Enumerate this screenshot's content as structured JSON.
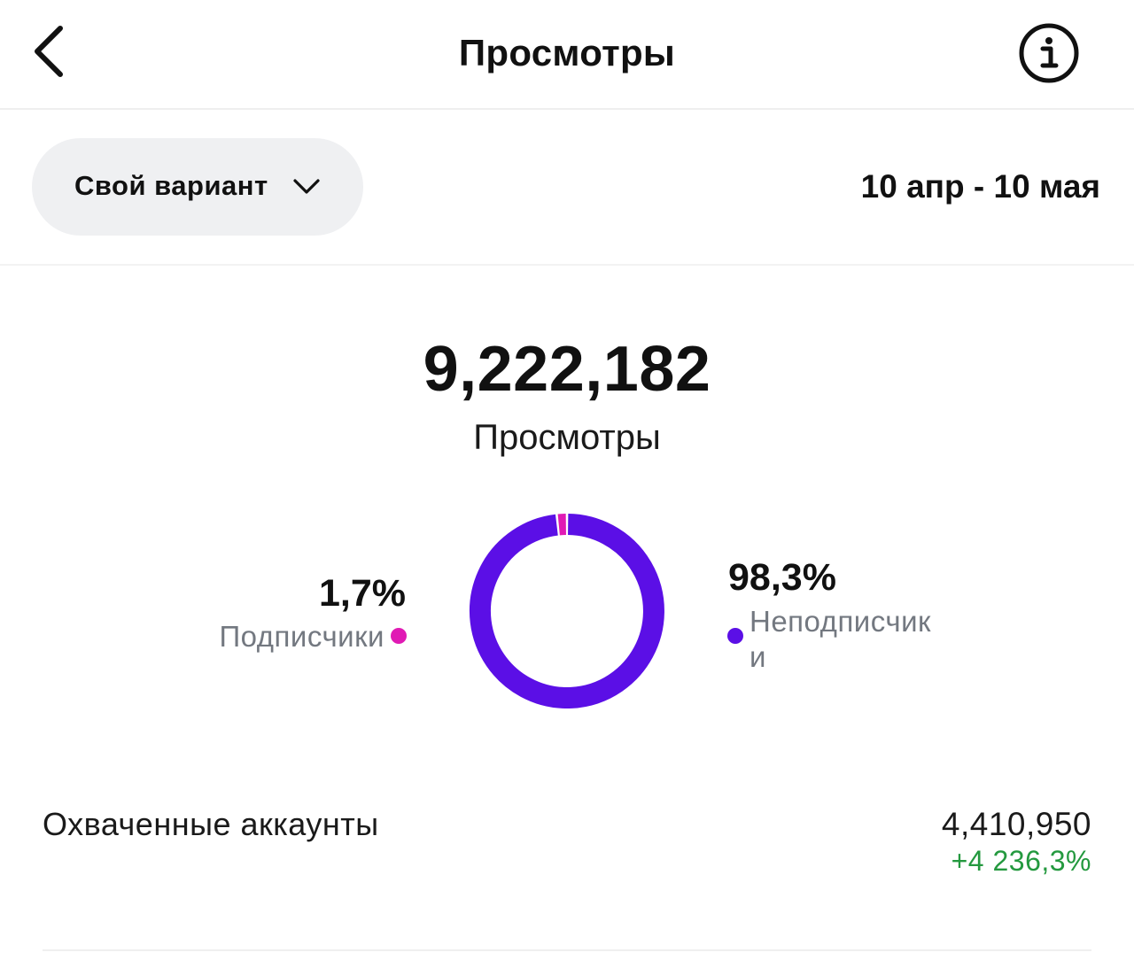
{
  "header": {
    "title": "Просмотры",
    "back_icon": "chevron-left-icon",
    "info_icon": "info-circle-icon"
  },
  "filters": {
    "range_label": "Свой вариант",
    "range_icon": "chevron-down-icon",
    "date_range": "10 апр - 10 мая"
  },
  "summary": {
    "total": "9,222,182",
    "total_label": "Просмотры"
  },
  "breakdown": {
    "followers": {
      "pct_text": "1,7%",
      "label": "Подписчики",
      "color": "#e01ab4",
      "share": 0.017
    },
    "non_followers": {
      "pct_text": "98,3%",
      "label": "Неподписчики",
      "color": "#5b0fe6",
      "share": 0.983
    }
  },
  "metrics": {
    "reached": {
      "label": "Охваченные аккаунты",
      "value": "4,410,950",
      "change": "+4 236,3%",
      "change_color": "#24993f"
    }
  }
}
